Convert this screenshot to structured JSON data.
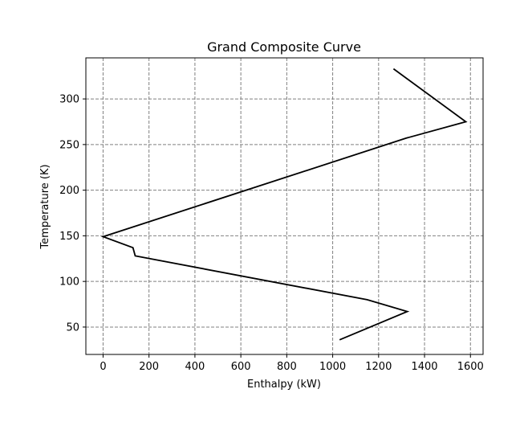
{
  "chart_data": {
    "type": "line",
    "title": "Grand Composite Curve",
    "xlabel": "Enthalpy (kW)",
    "ylabel": "Temperature (K)",
    "xlim": [
      -75,
      1655
    ],
    "ylim": [
      20,
      345
    ],
    "xticks": [
      0,
      200,
      400,
      600,
      800,
      1000,
      1200,
      1400,
      1600
    ],
    "yticks": [
      50,
      100,
      150,
      200,
      250,
      300
    ],
    "grid": true,
    "grid_style": "dashed",
    "colors": {
      "line": "#000000",
      "grid": "#808080",
      "frame": "#000000"
    },
    "series": [
      {
        "name": "Grand Composite Curve",
        "x": [
          1265,
          1580,
          1320,
          0,
          130,
          140,
          1150,
          1325,
          1030
        ],
        "y": [
          333,
          275,
          257,
          149,
          137,
          128,
          80,
          67,
          36
        ]
      }
    ]
  }
}
